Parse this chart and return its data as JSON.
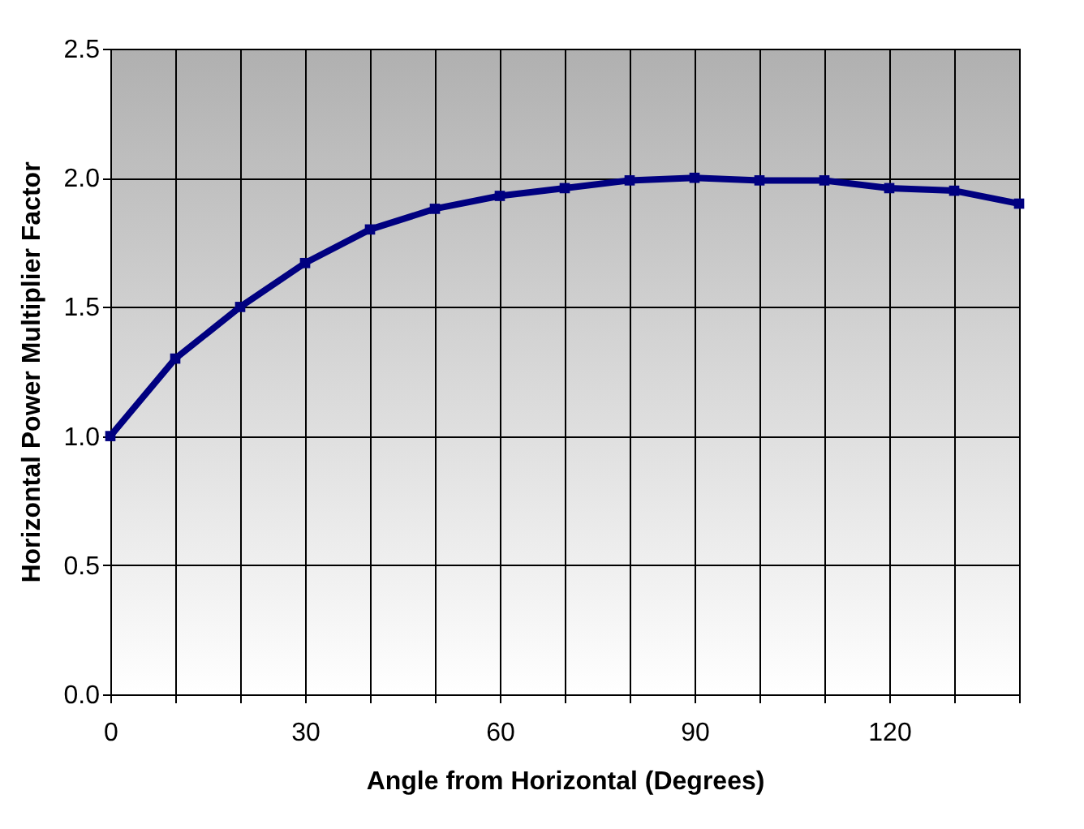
{
  "chart_data": {
    "type": "line",
    "xlabel": "Angle from Horizontal (Degrees)",
    "ylabel": "Horizontal Power Multiplier Factor",
    "x": [
      0,
      10,
      20,
      30,
      40,
      50,
      60,
      70,
      80,
      90,
      100,
      110,
      120,
      130,
      140
    ],
    "series": [
      {
        "color": "#000080",
        "values": [
          1.0,
          1.3,
          1.5,
          1.67,
          1.8,
          1.88,
          1.93,
          1.96,
          1.99,
          2.0,
          1.99,
          1.99,
          1.96,
          1.95,
          1.9
        ]
      }
    ],
    "xlim": [
      0,
      140
    ],
    "xticks": [
      0,
      {
        "value": 10,
        "label": null
      },
      {
        "value": 20,
        "label": null
      },
      30,
      {
        "value": 40,
        "label": null
      },
      {
        "value": 50,
        "label": null
      },
      60,
      {
        "value": 70,
        "label": null
      },
      {
        "value": 80,
        "label": null
      },
      90,
      {
        "value": 100,
        "label": null
      },
      {
        "value": 110,
        "label": null
      },
      120,
      {
        "value": 130,
        "label": null
      },
      {
        "value": 140,
        "label": null
      }
    ],
    "ylim": [
      0,
      2.5
    ],
    "yticks": [
      {
        "value": 0,
        "label": "0.0"
      },
      {
        "value": 0.5,
        "label": "0.5"
      },
      {
        "value": 1,
        "label": "1.0"
      },
      {
        "value": 1.5,
        "label": "1.5"
      },
      {
        "value": 2,
        "label": "2.0"
      },
      {
        "value": 2.5,
        "label": "2.5"
      }
    ],
    "grid": true,
    "marker": "square",
    "line_style": "solid",
    "legend": false
  }
}
